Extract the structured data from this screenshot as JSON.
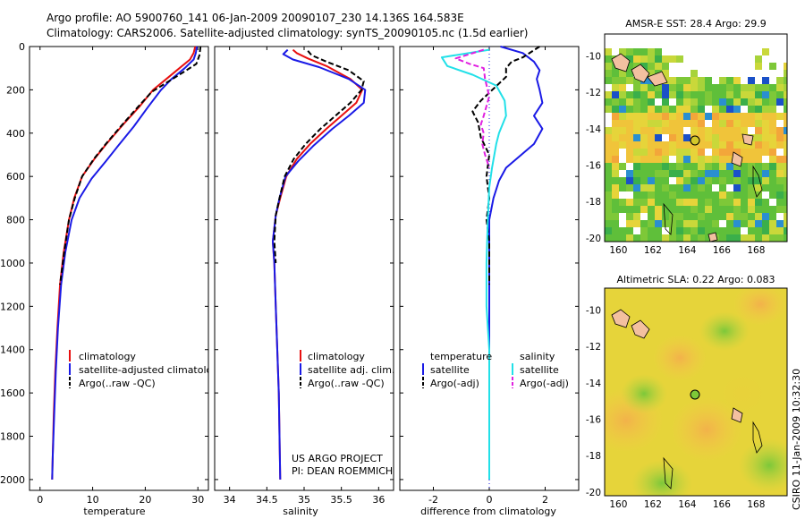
{
  "header": {
    "line1": "Argo profile: AO 5900760_141 06-Jan-2009 20090107_230 14.136S 164.583E",
    "line2": "Climatology: CARS2006. Satellite-adjusted climatology: synTS_20090105.nc (1.5d earlier)"
  },
  "credit": {
    "project": "US ARGO PROJECT",
    "pi": "PI: DEAN ROEMMICH",
    "stamp": "CSIRO 11-Jan-2009 10:32:30"
  },
  "colors": {
    "climatology": "#e81010",
    "satellite": "#1a1ae6",
    "argo": "#000000",
    "sal_satellite": "#22e0e8",
    "sal_argo": "#e020e0"
  },
  "chart_data": [
    {
      "type": "line",
      "name": "temperature-profile",
      "xlabel": "temperature",
      "ylabel": "",
      "xlim": [
        -2,
        32
      ],
      "ylim": [
        2050,
        0
      ],
      "xticks": [
        "0",
        "10",
        "20",
        "30"
      ],
      "yticks": [
        "0",
        "200",
        "400",
        "600",
        "800",
        "1000",
        "1200",
        "1400",
        "1600",
        "1800",
        "2000"
      ],
      "legend": [
        "climatology",
        "satellite-adjusted climatology",
        "Argo(..raw -QC)"
      ],
      "series": [
        {
          "name": "climatology",
          "points": [
            [
              29.5,
              0
            ],
            [
              29.2,
              30
            ],
            [
              28.5,
              60
            ],
            [
              26.5,
              100
            ],
            [
              24,
              150
            ],
            [
              21.5,
              200
            ],
            [
              18.8,
              280
            ],
            [
              15.8,
              360
            ],
            [
              12.6,
              450
            ],
            [
              10.3,
              520
            ],
            [
              8,
              600
            ],
            [
              6.5,
              700
            ],
            [
              5.5,
              800
            ],
            [
              4.5,
              950
            ],
            [
              3.8,
              1100
            ],
            [
              3.3,
              1300
            ],
            [
              2.9,
              1500
            ],
            [
              2.6,
              1700
            ],
            [
              2.4,
              1900
            ],
            [
              2.3,
              2000
            ]
          ]
        },
        {
          "name": "satellite-adjusted climatology",
          "points": [
            [
              29.8,
              0
            ],
            [
              29.6,
              30
            ],
            [
              29.2,
              60
            ],
            [
              27.5,
              100
            ],
            [
              25,
              150
            ],
            [
              23,
              200
            ],
            [
              20.5,
              280
            ],
            [
              17.8,
              370
            ],
            [
              14.8,
              460
            ],
            [
              12.5,
              530
            ],
            [
              9.8,
              610
            ],
            [
              7.5,
              700
            ],
            [
              6,
              800
            ],
            [
              4.8,
              950
            ],
            [
              4,
              1100
            ],
            [
              3.4,
              1300
            ],
            [
              3,
              1500
            ],
            [
              2.7,
              1700
            ],
            [
              2.4,
              1900
            ],
            [
              2.3,
              2000
            ]
          ]
        },
        {
          "name": "Argo(..raw -QC)",
          "points": [
            [
              30.5,
              0
            ],
            [
              30.3,
              40
            ],
            [
              29.7,
              80
            ],
            [
              27.8,
              110
            ],
            [
              24.5,
              160
            ],
            [
              21.2,
              210
            ],
            [
              18.2,
              290
            ],
            [
              15.3,
              370
            ],
            [
              12.5,
              450
            ],
            [
              10.2,
              520
            ],
            [
              8,
              600
            ],
            [
              6.6,
              700
            ],
            [
              5.5,
              800
            ],
            [
              4.6,
              950
            ],
            [
              3.8,
              1100
            ]
          ]
        }
      ]
    },
    {
      "type": "line",
      "name": "salinity-profile",
      "xlabel": "salinity",
      "xlim": [
        33.8,
        36.2
      ],
      "ylim": [
        2050,
        0
      ],
      "xticks": [
        "34",
        "34.5",
        "35",
        "35.5",
        "36"
      ],
      "legend": [
        "climatology",
        "satellite adj. clim.",
        "Argo(..raw -QC)"
      ],
      "series": [
        {
          "name": "climatology",
          "points": [
            [
              34.85,
              15
            ],
            [
              34.9,
              30
            ],
            [
              35.05,
              55
            ],
            [
              35.3,
              90
            ],
            [
              35.62,
              150
            ],
            [
              35.78,
              200
            ],
            [
              35.7,
              260
            ],
            [
              35.5,
              320
            ],
            [
              35.3,
              380
            ],
            [
              35.08,
              450
            ],
            [
              34.9,
              520
            ],
            [
              34.76,
              600
            ],
            [
              34.68,
              700
            ],
            [
              34.62,
              780
            ],
            [
              34.58,
              900
            ],
            [
              34.6,
              1000
            ],
            [
              34.62,
              1200
            ],
            [
              34.64,
              1400
            ],
            [
              34.66,
              1600
            ],
            [
              34.67,
              1800
            ],
            [
              34.68,
              2000
            ]
          ]
        },
        {
          "name": "satellite adj. clim.",
          "points": [
            [
              34.78,
              15
            ],
            [
              34.72,
              35
            ],
            [
              34.85,
              60
            ],
            [
              35.2,
              95
            ],
            [
              35.6,
              150
            ],
            [
              35.82,
              200
            ],
            [
              35.8,
              260
            ],
            [
              35.6,
              320
            ],
            [
              35.38,
              380
            ],
            [
              35.12,
              460
            ],
            [
              34.92,
              530
            ],
            [
              34.75,
              600
            ],
            [
              34.67,
              700
            ],
            [
              34.62,
              780
            ],
            [
              34.58,
              900
            ],
            [
              34.6,
              1000
            ],
            [
              34.62,
              1200
            ],
            [
              34.64,
              1400
            ],
            [
              34.66,
              1600
            ],
            [
              34.67,
              1800
            ],
            [
              34.68,
              2000
            ]
          ]
        },
        {
          "name": "Argo(..raw -QC)",
          "points": [
            [
              35.05,
              20
            ],
            [
              35.1,
              40
            ],
            [
              35.3,
              70
            ],
            [
              35.6,
              110
            ],
            [
              35.8,
              160
            ],
            [
              35.77,
              200
            ],
            [
              35.62,
              260
            ],
            [
              35.42,
              320
            ],
            [
              35.22,
              380
            ],
            [
              35.02,
              450
            ],
            [
              34.86,
              520
            ],
            [
              34.74,
              600
            ],
            [
              34.67,
              700
            ],
            [
              34.62,
              780
            ],
            [
              34.6,
              900
            ],
            [
              34.62,
              1000
            ]
          ]
        }
      ]
    },
    {
      "type": "line",
      "name": "difference-profile",
      "xlabel": "difference from climatology",
      "xlim": [
        -3.2,
        3.2
      ],
      "ylim": [
        2050,
        0
      ],
      "xticks": [
        "-2",
        "0",
        "2"
      ],
      "legend_groups": [
        {
          "heading": "temperature",
          "items": [
            "satellite",
            "Argo(-adj)"
          ]
        },
        {
          "heading": "salinity",
          "items": [
            "satellite",
            "Argo(-adj)"
          ]
        }
      ],
      "series": [
        {
          "name": "temperature satellite",
          "points": [
            [
              0.4,
              0
            ],
            [
              1.2,
              30
            ],
            [
              1.6,
              70
            ],
            [
              1.8,
              110
            ],
            [
              1.7,
              150
            ],
            [
              1.8,
              200
            ],
            [
              1.9,
              260
            ],
            [
              1.6,
              320
            ],
            [
              1.9,
              380
            ],
            [
              1.6,
              450
            ],
            [
              0.6,
              560
            ],
            [
              0.35,
              620
            ],
            [
              0.15,
              700
            ],
            [
              0,
              800
            ],
            [
              0,
              1000
            ],
            [
              0,
              1400
            ],
            [
              0,
              2000
            ]
          ]
        },
        {
          "name": "temperature Argo(-adj)",
          "points": [
            [
              1.8,
              0
            ],
            [
              1.2,
              50
            ],
            [
              0.8,
              70
            ],
            [
              0.6,
              100
            ],
            [
              0.6,
              140
            ],
            [
              -0.3,
              250
            ],
            [
              -0.6,
              300
            ],
            [
              -0.4,
              350
            ],
            [
              -0.3,
              420
            ],
            [
              0,
              500
            ],
            [
              -0.1,
              600
            ],
            [
              0,
              700
            ],
            [
              -0.1,
              800
            ],
            [
              0,
              900
            ],
            [
              0,
              1100
            ]
          ]
        },
        {
          "name": "salinity satellite",
          "points": [
            [
              0,
              15
            ],
            [
              -1.7,
              50
            ],
            [
              -1.5,
              90
            ],
            [
              -0.6,
              130
            ],
            [
              0.25,
              180
            ],
            [
              0.55,
              250
            ],
            [
              0.6,
              320
            ],
            [
              0.35,
              400
            ],
            [
              0.25,
              450
            ],
            [
              0.1,
              560
            ],
            [
              0,
              650
            ],
            [
              -0.05,
              800
            ],
            [
              -0.1,
              1000
            ],
            [
              -0.1,
              1200
            ],
            [
              0,
              1400
            ],
            [
              0,
              1600
            ],
            [
              0,
              2000
            ]
          ]
        },
        {
          "name": "salinity Argo(-adj)",
          "points": [
            [
              -0.2,
              15
            ],
            [
              -1.2,
              55
            ],
            [
              -0.7,
              80
            ],
            [
              -0.2,
              100
            ],
            [
              -0.15,
              150
            ],
            [
              0,
              230
            ],
            [
              -0.2,
              320
            ],
            [
              -0.3,
              360
            ],
            [
              -0.2,
              400
            ],
            [
              -0.25,
              450
            ],
            [
              -0.15,
              500
            ],
            [
              0,
              560
            ]
          ]
        }
      ]
    },
    {
      "type": "heatmap",
      "name": "sst-map",
      "title": "AMSR-E SST: 28.4 Argo: 29.9",
      "xlim": [
        159.2,
        169.8
      ],
      "ylim": [
        -20.2,
        -8.8
      ],
      "xticks": [
        "160",
        "162",
        "164",
        "166",
        "168"
      ],
      "yticks": [
        "-10",
        "-12",
        "-14",
        "-16",
        "-18",
        "-20"
      ],
      "float_position": [
        164.583,
        -14.136
      ]
    },
    {
      "type": "heatmap",
      "name": "sla-map",
      "title": "Altimetric SLA: 0.22 Argo: 0.083",
      "xlim": [
        159.2,
        169.8
      ],
      "ylim": [
        -20.2,
        -8.8
      ],
      "xticks": [
        "160",
        "162",
        "164",
        "166",
        "168"
      ],
      "yticks": [
        "-10",
        "-12",
        "-14",
        "-16",
        "-18",
        "-20"
      ],
      "float_position": [
        164.583,
        -14.136
      ]
    }
  ]
}
